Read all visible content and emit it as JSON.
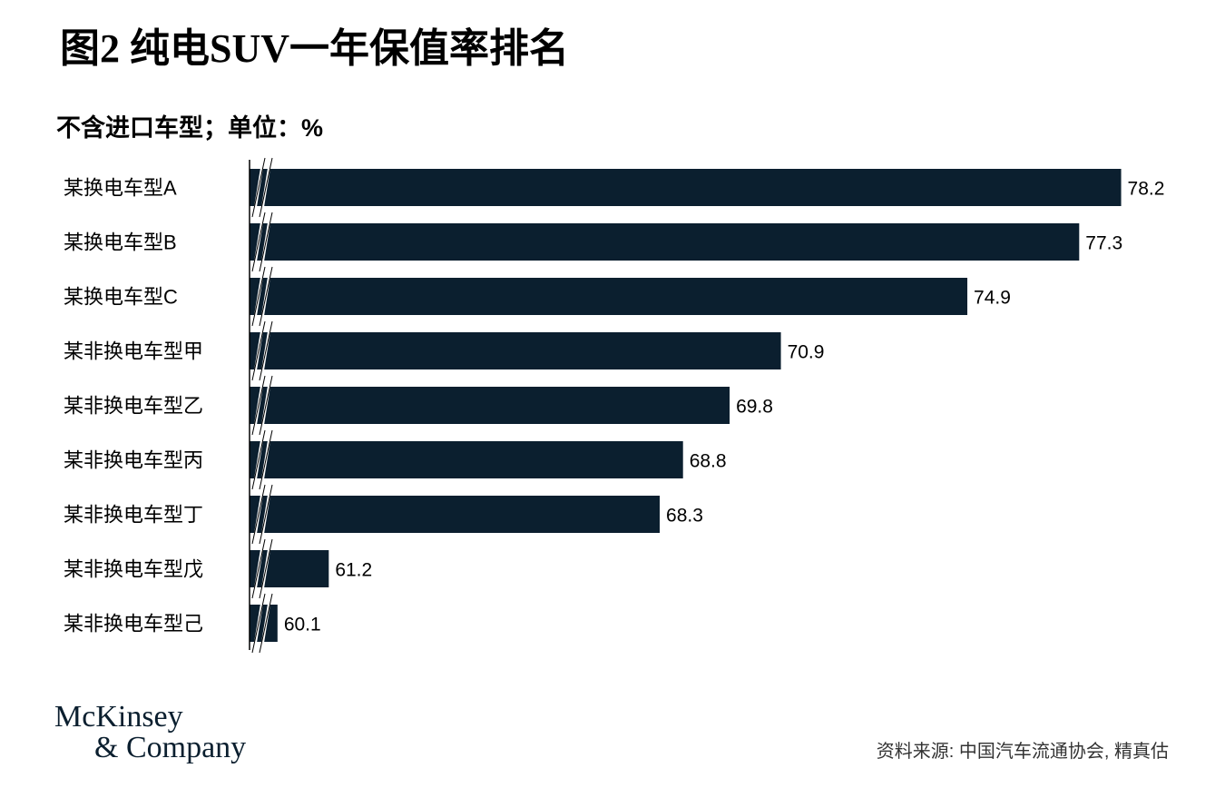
{
  "chart_data": {
    "type": "hbar",
    "title": "图2 纯电SUV一年保值率排名",
    "subtitle": "不含进口车型；单位：%",
    "categories": [
      "某换电车型A",
      "某换电车型B",
      "某换电车型C",
      "某非换电车型甲",
      "某非换电车型乙",
      "某非换电车型丙",
      "某非换电车型丁",
      "某非换电车型戊",
      "某非换电车型己"
    ],
    "values": [
      78.2,
      77.3,
      74.9,
      70.9,
      69.8,
      68.8,
      68.3,
      61.2,
      60.1
    ],
    "color": "#0b1f2f",
    "xlim": [
      59.5,
      80
    ],
    "axis_break": true,
    "logo": [
      "McKinsey",
      "& Company"
    ],
    "source": "资料来源: 中国汽车流通协会, 精真估"
  }
}
